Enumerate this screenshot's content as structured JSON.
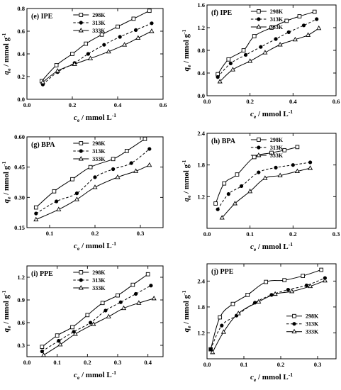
{
  "chart_data": [
    {
      "type": "line",
      "title": "(e) IPE",
      "xlabel": {
        "sym": "c",
        "sub": "e",
        "unit": " / mmol L",
        "sup": "-1"
      },
      "ylabel": {
        "sym": "q",
        "sub": "e",
        "unit": " / mmol g",
        "sup": "-1"
      },
      "xlim": [
        0.0,
        0.6
      ],
      "ylim": [
        0.0,
        0.8
      ],
      "xticks": [
        0.0,
        0.2,
        0.4,
        0.6
      ],
      "xtick_labels": [
        "0.0",
        "0.2",
        "0.4",
        "0.6"
      ],
      "yticks": [
        0.0,
        0.2,
        0.4,
        0.6,
        0.8
      ],
      "ytick_labels": [
        "0.0",
        "0.2",
        "0.4",
        "0.6",
        "0.8"
      ],
      "legend": "top-center",
      "series": [
        {
          "name": "298K",
          "x": [
            0.065,
            0.13,
            0.2,
            0.26,
            0.33,
            0.4,
            0.47,
            0.54
          ],
          "y": [
            0.16,
            0.3,
            0.4,
            0.49,
            0.57,
            0.64,
            0.71,
            0.78
          ]
        },
        {
          "name": "313K",
          "x": [
            0.07,
            0.135,
            0.21,
            0.27,
            0.34,
            0.41,
            0.48,
            0.55
          ],
          "y": [
            0.13,
            0.24,
            0.32,
            0.4,
            0.48,
            0.55,
            0.61,
            0.67
          ]
        },
        {
          "name": "333K",
          "x": [
            0.07,
            0.135,
            0.21,
            0.28,
            0.36,
            0.43,
            0.49,
            0.55
          ],
          "y": [
            0.15,
            0.25,
            0.31,
            0.36,
            0.42,
            0.48,
            0.54,
            0.6
          ]
        }
      ]
    },
    {
      "type": "line",
      "title": "(f) IPE",
      "xlabel": {
        "sym": "c",
        "sub": "e",
        "unit": " / mmol L",
        "sup": "-1"
      },
      "ylabel": {
        "sym": "q",
        "sub": "e",
        "unit": " / mmol g",
        "sup": "-1"
      },
      "xlim": [
        0.0,
        0.6
      ],
      "ylim": [
        0.0,
        1.6
      ],
      "xticks": [
        0.0,
        0.2,
        0.4,
        0.6
      ],
      "xtick_labels": [
        "0.0",
        "0.2",
        "0.4",
        "0.6"
      ],
      "yticks": [
        0.0,
        0.4,
        0.8,
        1.2,
        1.6
      ],
      "ytick_labels": [
        "0.0",
        "0.4",
        "0.8",
        "1.2",
        "1.6"
      ],
      "legend": "top-center",
      "series": [
        {
          "name": "298K",
          "x": [
            0.05,
            0.1,
            0.17,
            0.22,
            0.3,
            0.37,
            0.43,
            0.5
          ],
          "y": [
            0.38,
            0.64,
            0.8,
            1.05,
            1.2,
            1.32,
            1.4,
            1.48
          ]
        },
        {
          "name": "313K",
          "x": [
            0.05,
            0.11,
            0.18,
            0.25,
            0.32,
            0.38,
            0.45,
            0.51
          ],
          "y": [
            0.33,
            0.57,
            0.72,
            0.86,
            1.0,
            1.12,
            1.24,
            1.35
          ]
        },
        {
          "name": "333K",
          "x": [
            0.06,
            0.12,
            0.2,
            0.27,
            0.34,
            0.41,
            0.47,
            0.52
          ],
          "y": [
            0.25,
            0.46,
            0.61,
            0.76,
            0.9,
            0.99,
            1.07,
            1.19
          ]
        }
      ]
    },
    {
      "type": "line",
      "title": "(g) BPA",
      "xlabel": {
        "sym": "c",
        "sub": "e",
        "unit": " / mmol L",
        "sup": "-1"
      },
      "ylabel": {
        "sym": "q",
        "sub": "e",
        "unit": " / mmol g",
        "sup": "-1"
      },
      "xlim": [
        0.05,
        0.35
      ],
      "ylim": [
        0.15,
        0.6
      ],
      "xticks": [
        0.1,
        0.2,
        0.3
      ],
      "xtick_labels": [
        "0.1",
        "0.2",
        "0.3"
      ],
      "yticks": [
        0.15,
        0.3,
        0.45,
        0.6
      ],
      "ytick_labels": [
        "0.15",
        "0.30",
        "0.45",
        "0.60"
      ],
      "legend": "top-center",
      "series": [
        {
          "name": "298K",
          "x": [
            0.07,
            0.11,
            0.15,
            0.19,
            0.24,
            0.27,
            0.31
          ],
          "y": [
            0.25,
            0.33,
            0.39,
            0.45,
            0.49,
            0.53,
            0.59
          ]
        },
        {
          "name": "313K",
          "x": [
            0.07,
            0.115,
            0.16,
            0.2,
            0.24,
            0.28,
            0.32
          ],
          "y": [
            0.22,
            0.28,
            0.32,
            0.4,
            0.44,
            0.47,
            0.54
          ]
        },
        {
          "name": "333K",
          "x": [
            0.07,
            0.12,
            0.16,
            0.2,
            0.25,
            0.29,
            0.32
          ],
          "y": [
            0.19,
            0.24,
            0.29,
            0.35,
            0.4,
            0.43,
            0.46
          ]
        }
      ]
    },
    {
      "type": "line",
      "title": "(h) BPA",
      "xlabel": {
        "sym": "c",
        "sub": "e",
        "unit": " / mmol L",
        "sup": "-1"
      },
      "ylabel": {
        "sym": "q",
        "sub": "e",
        "unit": " / mmol g",
        "sup": "-1"
      },
      "xlim": [
        0.0,
        0.3
      ],
      "ylim": [
        0.6,
        2.4
      ],
      "xticks": [
        0.0,
        0.1,
        0.2,
        0.3
      ],
      "xtick_labels": [
        "0.0",
        "0.1",
        "0.2",
        "0.3"
      ],
      "yticks": [
        1.2,
        1.8,
        2.4
      ],
      "ytick_labels": [
        "1.2",
        "1.8",
        "2.4"
      ],
      "legend": "top-center",
      "series": [
        {
          "name": "298K",
          "x": [
            0.02,
            0.04,
            0.07,
            0.11,
            0.15,
            0.18,
            0.21
          ],
          "y": [
            1.07,
            1.45,
            1.62,
            1.95,
            2.03,
            2.08,
            2.14
          ]
        },
        {
          "name": "313K",
          "x": [
            0.025,
            0.05,
            0.08,
            0.12,
            0.16,
            0.2,
            0.24
          ],
          "y": [
            0.96,
            1.25,
            1.4,
            1.66,
            1.75,
            1.8,
            1.85
          ]
        },
        {
          "name": "333K",
          "x": [
            0.035,
            0.065,
            0.1,
            0.135,
            0.17,
            0.21,
            0.24
          ],
          "y": [
            0.8,
            1.07,
            1.3,
            1.55,
            1.6,
            1.68,
            1.74
          ]
        }
      ]
    },
    {
      "type": "line",
      "title": "(i) PPE",
      "xlabel": {
        "sym": "c",
        "sub": "e",
        "unit": " / mmol L",
        "sup": "-1"
      },
      "ylabel": {
        "sym": "q",
        "sub": "e",
        "unit": " / mmol g",
        "sup": "-1"
      },
      "xlim": [
        0.0,
        0.45
      ],
      "ylim": [
        0.15,
        1.35
      ],
      "xticks": [
        0.0,
        0.1,
        0.2,
        0.3,
        0.4
      ],
      "xtick_labels": [
        "0.0",
        "0.1",
        "0.2",
        "0.3",
        "0.4"
      ],
      "yticks": [
        0.3,
        0.6,
        0.9,
        1.2
      ],
      "ytick_labels": [
        "0.3",
        "0.6",
        "0.9",
        "1.2"
      ],
      "legend": "top-center",
      "series": [
        {
          "name": "298K",
          "x": [
            0.05,
            0.1,
            0.15,
            0.2,
            0.25,
            0.3,
            0.35,
            0.4
          ],
          "y": [
            0.28,
            0.43,
            0.54,
            0.7,
            0.86,
            0.96,
            1.1,
            1.24
          ]
        },
        {
          "name": "313K",
          "x": [
            0.05,
            0.105,
            0.155,
            0.21,
            0.26,
            0.31,
            0.36,
            0.41
          ],
          "y": [
            0.22,
            0.36,
            0.48,
            0.6,
            0.76,
            0.87,
            0.98,
            1.09
          ]
        },
        {
          "name": "333K",
          "x": [
            0.055,
            0.11,
            0.16,
            0.22,
            0.27,
            0.32,
            0.37,
            0.42
          ],
          "y": [
            0.17,
            0.31,
            0.45,
            0.58,
            0.68,
            0.79,
            0.86,
            0.92
          ]
        }
      ]
    },
    {
      "type": "line",
      "title": "(j) PPE",
      "xlabel": {
        "sym": "c",
        "sub": "e",
        "unit": " / mmol L",
        "sup": "-1"
      },
      "ylabel": {
        "sym": "q",
        "sub": "e",
        "unit": " / mmol g",
        "sup": "-1"
      },
      "xlim": [
        0.0,
        0.35
      ],
      "ylim": [
        0.6,
        2.8
      ],
      "xticks": [
        0.0,
        0.1,
        0.2,
        0.3
      ],
      "xtick_labels": [
        "0.0",
        "0.1",
        "0.2",
        "0.3"
      ],
      "yticks": [
        1.2,
        1.8,
        2.4
      ],
      "ytick_labels": [
        "1.2",
        "1.8",
        "2.4"
      ],
      "legend": "center-right",
      "series": [
        {
          "name": "298K",
          "x": [
            0.01,
            0.035,
            0.07,
            0.11,
            0.16,
            0.21,
            0.26,
            0.31
          ],
          "y": [
            0.82,
            1.56,
            1.87,
            2.08,
            2.38,
            2.42,
            2.52,
            2.66
          ]
        },
        {
          "name": "313K",
          "x": [
            0.01,
            0.04,
            0.08,
            0.13,
            0.175,
            0.22,
            0.27,
            0.32
          ],
          "y": [
            0.82,
            1.37,
            1.6,
            1.9,
            2.08,
            2.2,
            2.3,
            2.47
          ]
        },
        {
          "name": "333K",
          "x": [
            0.015,
            0.045,
            0.085,
            0.14,
            0.185,
            0.23,
            0.28,
            0.32
          ],
          "y": [
            0.75,
            1.22,
            1.65,
            1.92,
            2.1,
            2.16,
            2.28,
            2.41
          ]
        }
      ]
    }
  ]
}
